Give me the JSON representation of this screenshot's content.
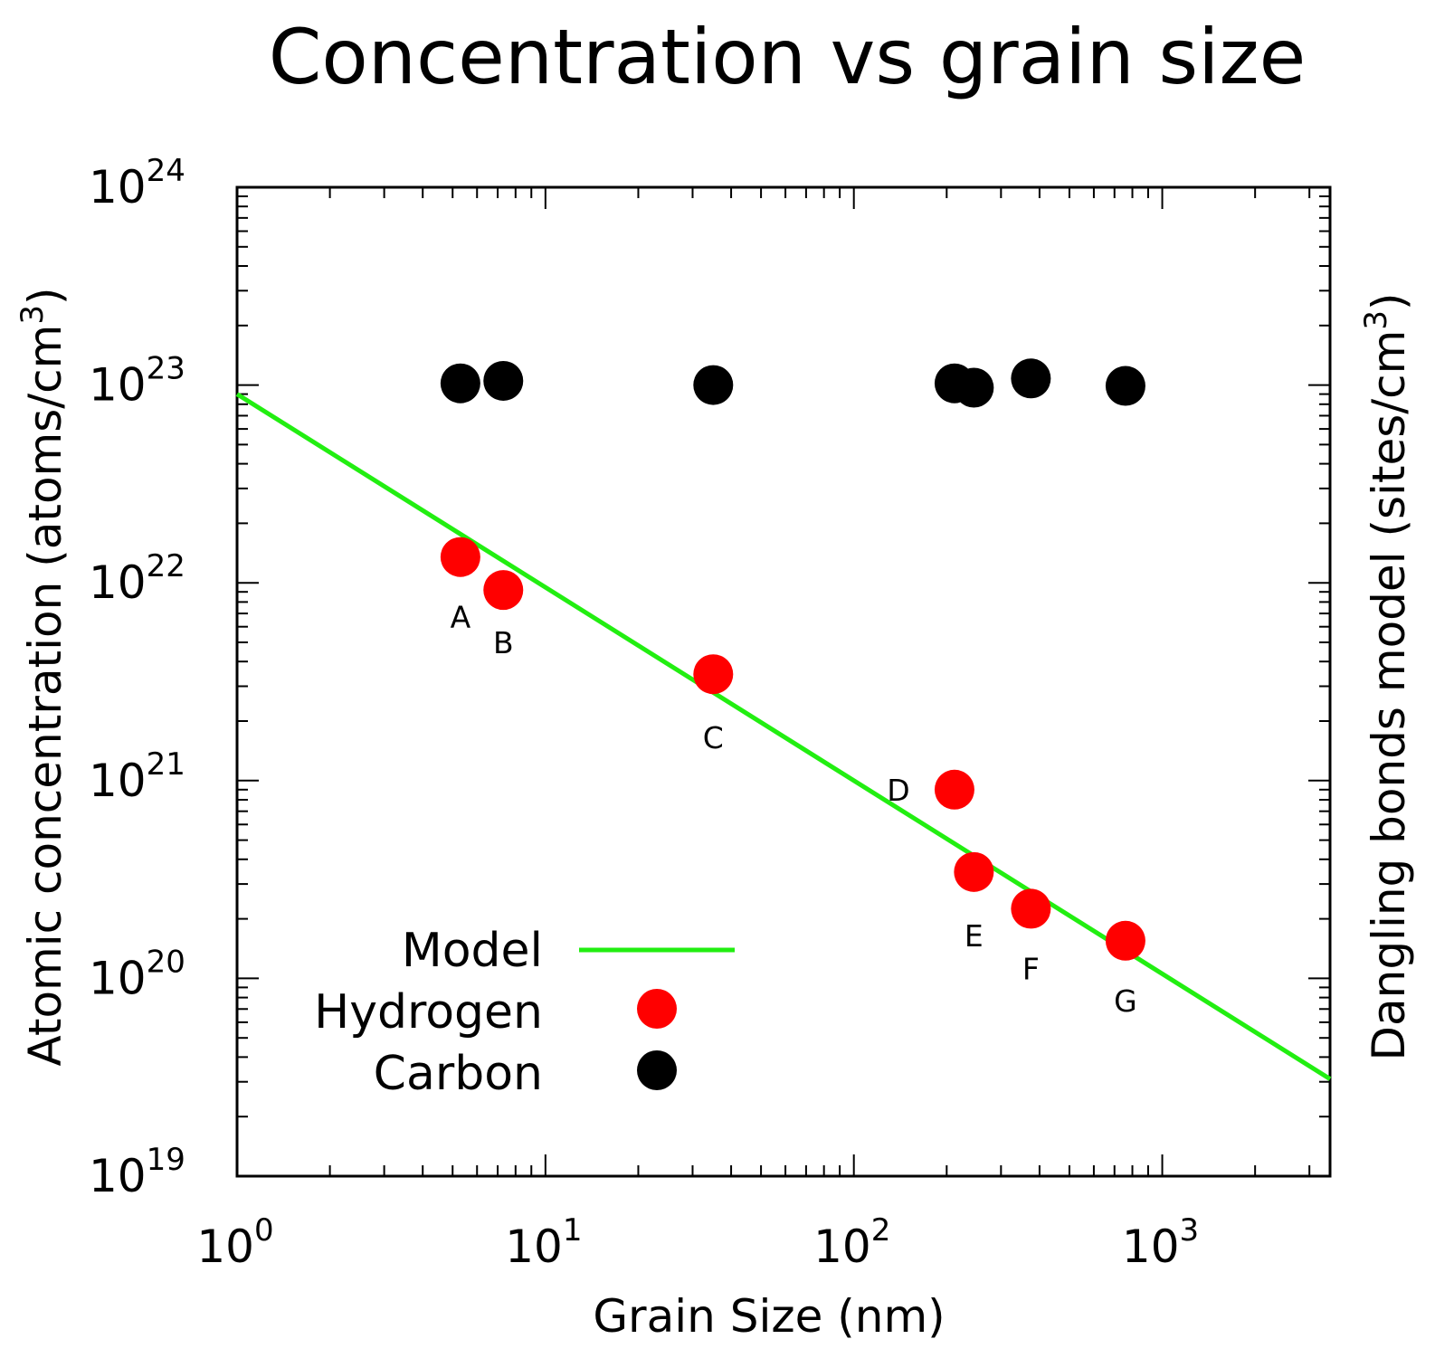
{
  "chart_data": {
    "type": "scatter",
    "title": "Concentration vs grain size",
    "xlabel": "Grain Size (nm)",
    "ylabel": "Atomic concentration (atoms/cm",
    "ylabel_sup": "3",
    "ylabel_close": ")",
    "y2label": "Dangling bonds model (sites/cm",
    "y2label_sup": "3",
    "y2label_close": ")",
    "x_scale": "log",
    "y_scale": "log",
    "xlim": [
      1,
      3500
    ],
    "ylim": [
      1e+19,
      1e+24
    ],
    "x_ticks": [
      {
        "base": "10",
        "exp": "0",
        "value": 1
      },
      {
        "base": "10",
        "exp": "1",
        "value": 10
      },
      {
        "base": "10",
        "exp": "2",
        "value": 100
      },
      {
        "base": "10",
        "exp": "3",
        "value": 1000
      }
    ],
    "y_ticks": [
      {
        "base": "10",
        "exp": "19",
        "value": 1e+19
      },
      {
        "base": "10",
        "exp": "20",
        "value": 1e+20
      },
      {
        "base": "10",
        "exp": "21",
        "value": 1e+21
      },
      {
        "base": "10",
        "exp": "22",
        "value": 1e+22
      },
      {
        "base": "10",
        "exp": "23",
        "value": 1e+23
      },
      {
        "base": "10",
        "exp": "24",
        "value": 1e+24
      }
    ],
    "grid": false,
    "legend_position": "bottom-left",
    "series": [
      {
        "name": "Model",
        "kind": "line",
        "color": "#22ee11",
        "points": [
          [
            1,
            9e+22
          ],
          [
            3500,
            3.1e+19
          ]
        ]
      },
      {
        "name": "Hydrogen",
        "kind": "scatter",
        "color": "#ff0000",
        "points": [
          {
            "x": 5.3,
            "y": 1.35e+22,
            "label": "A"
          },
          {
            "x": 7.3,
            "y": 9.2e+21,
            "label": "B"
          },
          {
            "x": 35,
            "y": 3.45e+21,
            "label": "C"
          },
          {
            "x": 212,
            "y": 9e+20,
            "label": "D"
          },
          {
            "x": 245,
            "y": 3.45e+20,
            "label": "E"
          },
          {
            "x": 375,
            "y": 2.25e+20,
            "label": "F"
          },
          {
            "x": 760,
            "y": 1.55e+20,
            "label": "G"
          }
        ]
      },
      {
        "name": "Carbon",
        "kind": "scatter",
        "color": "#000000",
        "points": [
          {
            "x": 5.3,
            "y": 1.02e+23
          },
          {
            "x": 7.3,
            "y": 1.05e+23
          },
          {
            "x": 35,
            "y": 1e+23
          },
          {
            "x": 212,
            "y": 1.02e+23
          },
          {
            "x": 245,
            "y": 9.7e+22
          },
          {
            "x": 375,
            "y": 1.08e+23
          },
          {
            "x": 760,
            "y": 9.9e+22
          }
        ]
      }
    ]
  }
}
